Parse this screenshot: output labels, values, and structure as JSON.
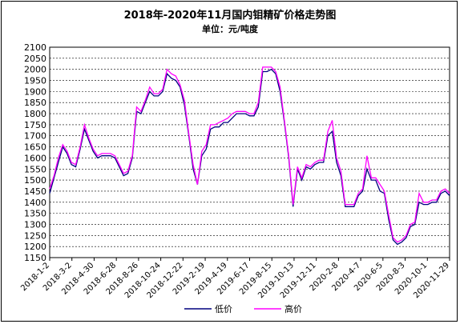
{
  "chart_data": {
    "type": "line",
    "title": "2018年-2020年11月国内钼精矿价格走势图",
    "subtitle": "单位：元/吨度",
    "xlabel": "",
    "ylabel": "",
    "ylim": [
      1150,
      2100
    ],
    "yticks": [
      1150,
      1200,
      1250,
      1300,
      1350,
      1400,
      1450,
      1500,
      1550,
      1600,
      1650,
      1700,
      1750,
      1800,
      1850,
      1900,
      1950,
      2000,
      2050,
      2100
    ],
    "xticks": [
      "2018-1-2",
      "2018-3-2",
      "2018-4-30",
      "2018-6-28",
      "2018-8-26",
      "2018-10-24",
      "2018-12-22",
      "2019-2-19",
      "2019-4-19",
      "2019-6-17",
      "2019-8-15",
      "2019-10-13",
      "2019-12-11",
      "2020-2-8",
      "2020-4-7",
      "2020-6-5",
      "2020-8-3",
      "2020-10-1",
      "2020-11-29"
    ],
    "grid": true,
    "legend_position": "bottom-right",
    "series": [
      {
        "name": "低价",
        "color": "#00007f",
        "values": [
          1440,
          1510,
          1580,
          1650,
          1620,
          1570,
          1560,
          1640,
          1730,
          1680,
          1630,
          1600,
          1610,
          1610,
          1610,
          1600,
          1560,
          1520,
          1530,
          1600,
          1810,
          1800,
          1850,
          1900,
          1880,
          1880,
          1900,
          1980,
          1960,
          1950,
          1920,
          1840,
          1700,
          1550,
          1480,
          1610,
          1640,
          1730,
          1740,
          1740,
          1760,
          1760,
          1780,
          1800,
          1800,
          1800,
          1790,
          1790,
          1830,
          1990,
          1990,
          2000,
          1980,
          1900,
          1760,
          1600,
          1380,
          1550,
          1500,
          1560,
          1550,
          1570,
          1580,
          1580,
          1700,
          1720,
          1580,
          1520,
          1380,
          1380,
          1380,
          1430,
          1450,
          1550,
          1500,
          1500,
          1450,
          1440,
          1320,
          1230,
          1210,
          1220,
          1240,
          1290,
          1300,
          1400,
          1390,
          1390,
          1400,
          1400,
          1440,
          1450,
          1430
        ]
      },
      {
        "name": "高价",
        "color": "#ff00ff",
        "values": [
          1460,
          1520,
          1600,
          1660,
          1630,
          1580,
          1570,
          1650,
          1750,
          1690,
          1640,
          1610,
          1620,
          1620,
          1620,
          1610,
          1570,
          1530,
          1540,
          1610,
          1830,
          1810,
          1860,
          1920,
          1890,
          1890,
          1910,
          2000,
          1980,
          1970,
          1930,
          1860,
          1710,
          1570,
          1480,
          1630,
          1660,
          1750,
          1750,
          1760,
          1770,
          1780,
          1800,
          1810,
          1810,
          1810,
          1800,
          1800,
          1850,
          2010,
          2010,
          2010,
          1990,
          1920,
          1770,
          1610,
          1390,
          1560,
          1510,
          1570,
          1560,
          1580,
          1590,
          1590,
          1720,
          1770,
          1600,
          1540,
          1390,
          1390,
          1390,
          1440,
          1460,
          1610,
          1510,
          1510,
          1480,
          1450,
          1340,
          1240,
          1220,
          1230,
          1250,
          1300,
          1310,
          1440,
          1400,
          1400,
          1410,
          1410,
          1450,
          1460,
          1440
        ]
      }
    ]
  }
}
